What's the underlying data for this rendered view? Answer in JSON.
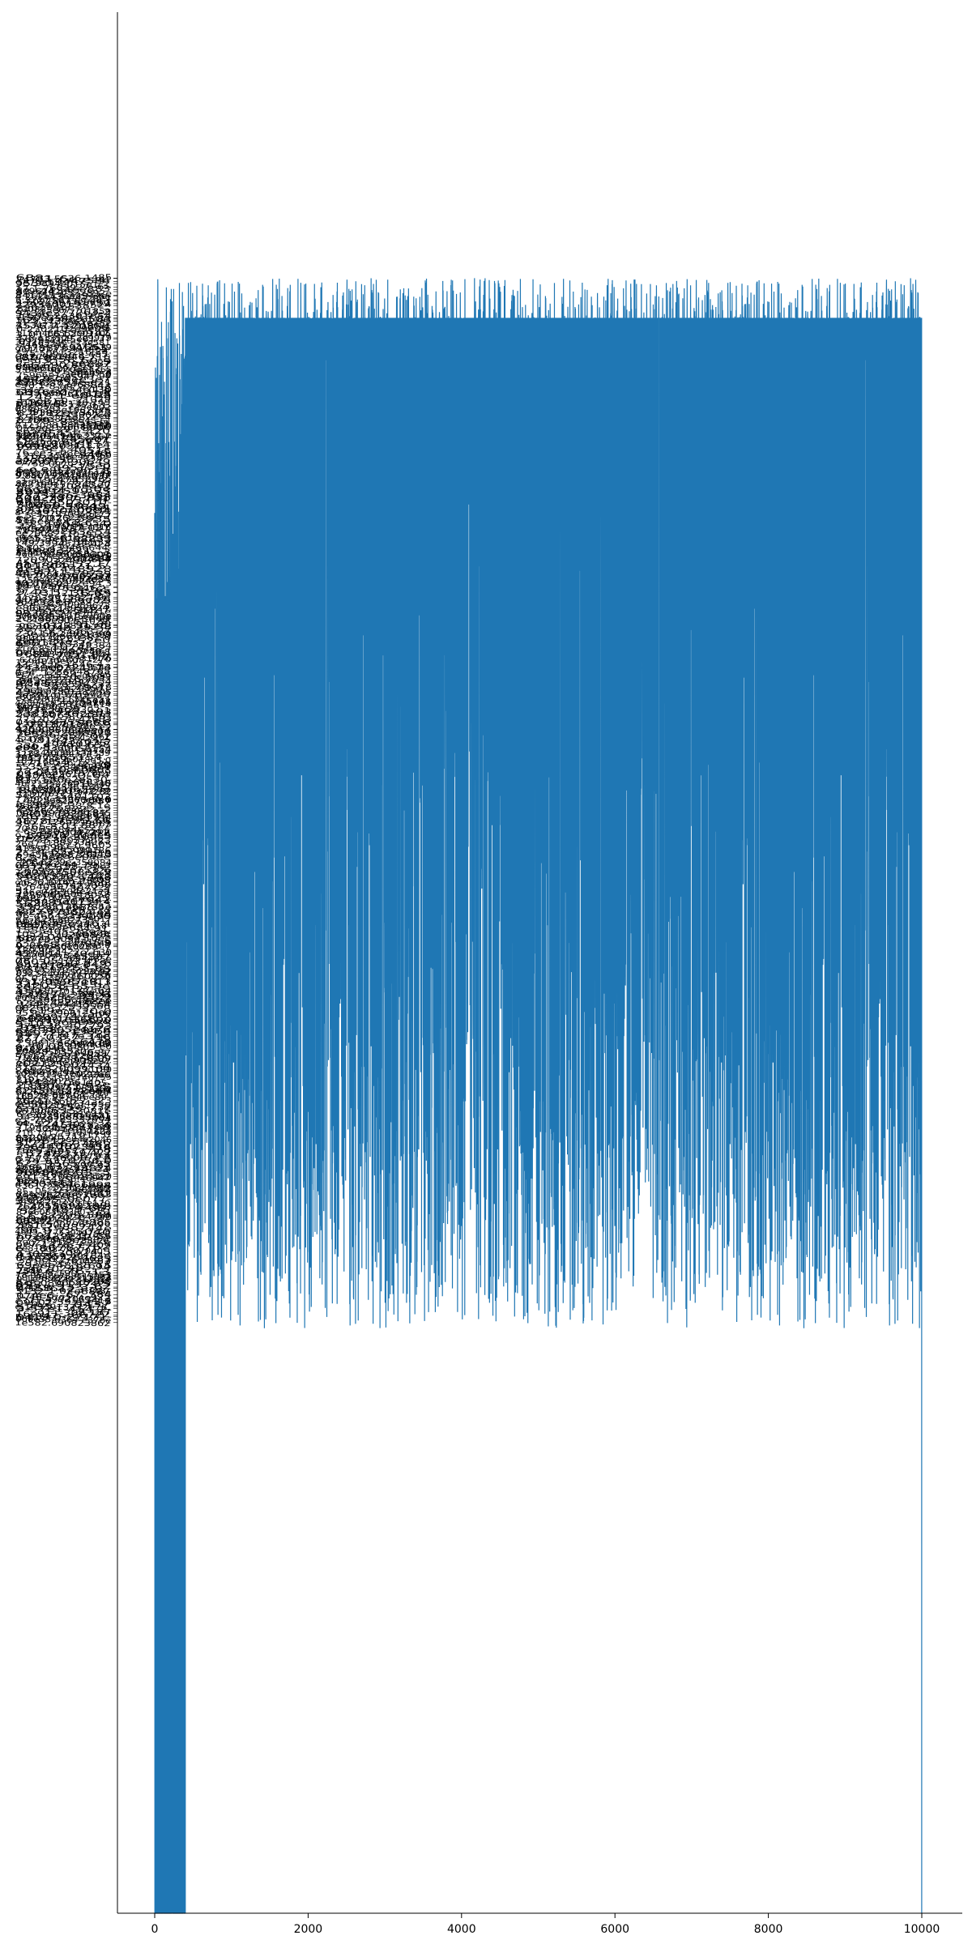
{
  "chart_data": {
    "type": "line",
    "title": "",
    "xlabel": "",
    "ylabel": "",
    "xlim": [
      -500,
      10500
    ],
    "x_ticks": [
      "0",
      "2000",
      "4000",
      "6000",
      "8000",
      "10000"
    ],
    "x_tick_values": [
      0,
      2000,
      4000,
      6000,
      8000,
      10000
    ],
    "n_points": 10000,
    "spines": [
      "left",
      "bottom"
    ],
    "grid": false,
    "legend": "none",
    "series": [
      {
        "color": "#1f77b4"
      }
    ],
    "y_ticks_note": "Y-axis is categorical with thousands of overlapping tick labels (illegible). The series oscillates rapidly between a dense plateau at the top category band and a wide range of lower categories; the first ~400 samples and the final sample reach the bottom of the axis."
  }
}
